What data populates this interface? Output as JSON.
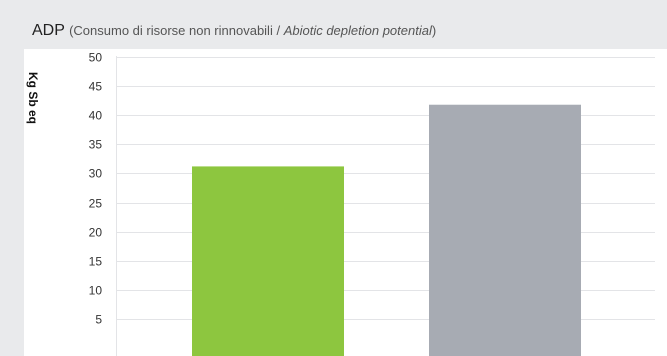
{
  "chart_data": {
    "type": "bar",
    "title_main": "ADP",
    "title_rest": "(Consumo di risorse non rinnovabili / ",
    "title_italic": "Abiotic depletion potential",
    "title_close": ")",
    "ylabel": "Kg Sb eq",
    "xlabel": "",
    "ylim": [
      0,
      50
    ],
    "yticks": [
      5,
      10,
      15,
      20,
      25,
      30,
      35,
      40,
      45,
      50
    ],
    "categories": [
      "",
      ""
    ],
    "values": [
      31.2,
      41.8
    ],
    "colors": [
      "#8dc63f",
      "#a7abb3"
    ],
    "grid": true,
    "legend": "none"
  }
}
